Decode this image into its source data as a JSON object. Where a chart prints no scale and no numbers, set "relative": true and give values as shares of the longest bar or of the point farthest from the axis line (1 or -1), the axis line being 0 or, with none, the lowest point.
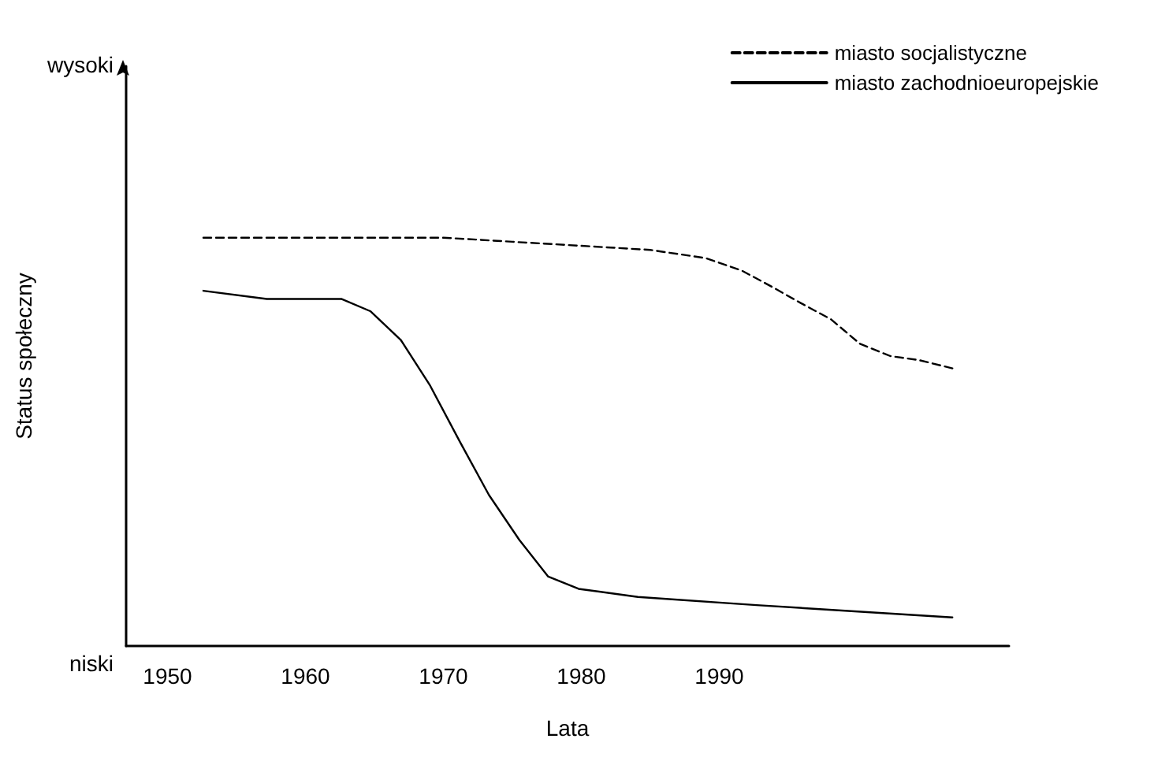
{
  "chart_data": {
    "type": "line",
    "xlabel": "Lata",
    "ylabel": "Status społeczny",
    "xlim": [
      1947,
      2011
    ],
    "xticks": [
      1950,
      1960,
      1970,
      1980,
      1990
    ],
    "relative": true,
    "annotations": [
      "wysoki",
      "niski"
    ],
    "legend": "top right",
    "marker": "none",
    "series": [
      {
        "name": "miasto socjalistyczne",
        "color": "#000000",
        "line_style": "dashed",
        "x": [
          1952.6,
          1960,
          1970,
          1975,
          1980,
          1985,
          1989,
          1991.6,
          1993.8,
          1995.9,
          1998.1,
          2000.2,
          2002.4,
          2004.5,
          2006.9
        ],
        "values": [
          1,
          1,
          1,
          0.99,
          0.98,
          0.97,
          0.95,
          0.92,
          0.88,
          0.84,
          0.8,
          0.74,
          0.71,
          0.7,
          0.68
        ]
      },
      {
        "name": "miasto zachodnioeuropejskie",
        "color": "#000000",
        "line_style": "solid",
        "x": [
          1952.6,
          1957.2,
          1962.6,
          1964.7,
          1966.9,
          1969,
          1971.2,
          1973.3,
          1975.5,
          1977.6,
          1979.8,
          1984.1,
          1992.7,
          2006.9
        ],
        "values": [
          0.87,
          0.85,
          0.85,
          0.82,
          0.75,
          0.64,
          0.5,
          0.37,
          0.26,
          0.17,
          0.14,
          0.12,
          0.1,
          0.07
        ]
      }
    ]
  }
}
